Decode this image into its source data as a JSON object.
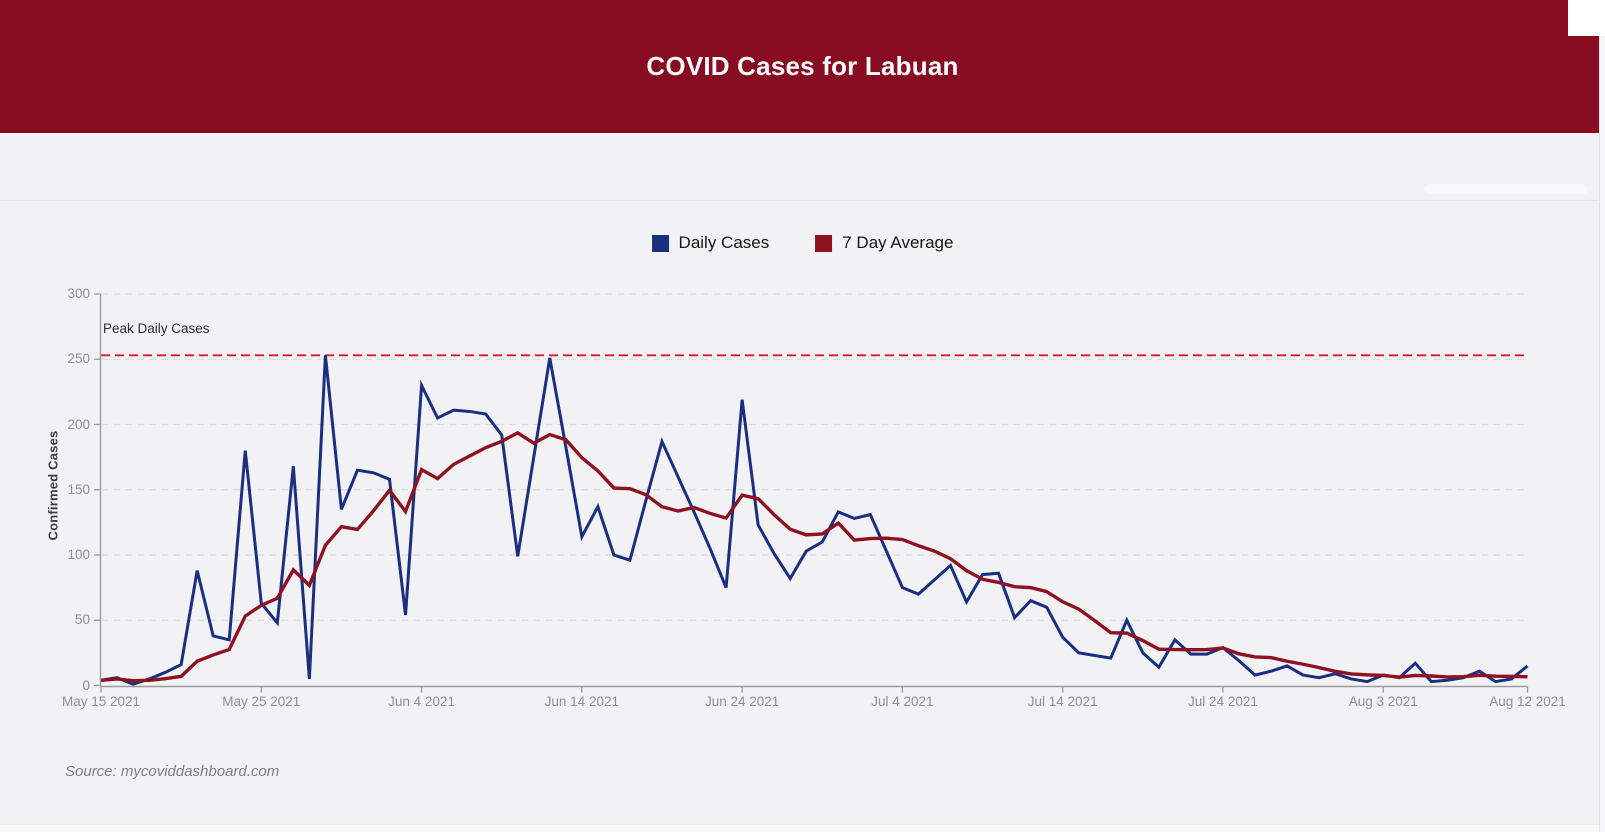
{
  "header": {
    "title": "COVID Cases for Labuan",
    "background": "#880c21",
    "text_color": "#ffffff"
  },
  "legend": {
    "items": [
      {
        "label": "Daily Cases",
        "color": "#1b2f80"
      },
      {
        "label": "7 Day Average",
        "color": "#8d1322"
      }
    ]
  },
  "chart_data": {
    "type": "line",
    "title": "COVID Cases for Labuan",
    "xlabel": "",
    "ylabel": "Confirmed Cases",
    "ylim": [
      0,
      300
    ],
    "y_ticks": [
      0,
      50,
      100,
      150,
      200,
      250,
      300
    ],
    "x_range_days": [
      0,
      89
    ],
    "x_tick_labels": [
      {
        "label": "May 15 2021",
        "day": 0
      },
      {
        "label": "May 25 2021",
        "day": 10
      },
      {
        "label": "Jun 4 2021",
        "day": 20
      },
      {
        "label": "Jun 14 2021",
        "day": 30
      },
      {
        "label": "Jun 24 2021",
        "day": 40
      },
      {
        "label": "Jul 4 2021",
        "day": 50
      },
      {
        "label": "Jul 14 2021",
        "day": 60
      },
      {
        "label": "Jul 24 2021",
        "day": 70
      },
      {
        "label": "Aug 3 2021",
        "day": 80
      },
      {
        "label": "Aug 12 2021",
        "day": 89
      }
    ],
    "grid": "horizontal-dashed",
    "legend_position": "top-center",
    "annotation": {
      "label": "Peak Daily Cases",
      "value": 253,
      "style": "dashed",
      "color": "#e11428"
    },
    "series": [
      {
        "name": "Daily Cases",
        "color": "#1b2f80",
        "start_date": "May 15 2021",
        "end_date": "Aug 12 2021",
        "values": [
          4,
          6,
          1,
          5,
          10,
          16,
          88,
          38,
          35,
          180,
          63,
          48,
          168,
          5,
          253,
          135,
          165,
          163,
          158,
          54,
          230,
          205,
          211,
          210,
          208,
          192,
          99,
          175,
          251,
          183,
          114,
          137,
          100,
          96,
          142,
          187,
          160,
          133,
          105,
          75,
          219,
          123,
          101,
          82,
          103,
          110,
          133,
          128,
          131,
          103,
          75,
          70,
          81,
          92,
          64,
          85,
          86,
          52,
          65,
          60,
          37,
          25,
          23,
          21,
          50,
          25,
          14,
          35,
          24,
          24,
          29,
          19,
          8,
          11,
          15,
          8,
          6,
          9,
          5,
          3,
          8,
          6,
          17,
          3,
          4,
          6,
          11,
          3,
          5,
          15
        ]
      },
      {
        "name": "7 Day Average",
        "color": "#8d1322",
        "derived": "7-day trailing mean of Daily Cases (partial window at series start)"
      }
    ]
  },
  "source": {
    "text": "Source: mycoviddashboard.com"
  }
}
